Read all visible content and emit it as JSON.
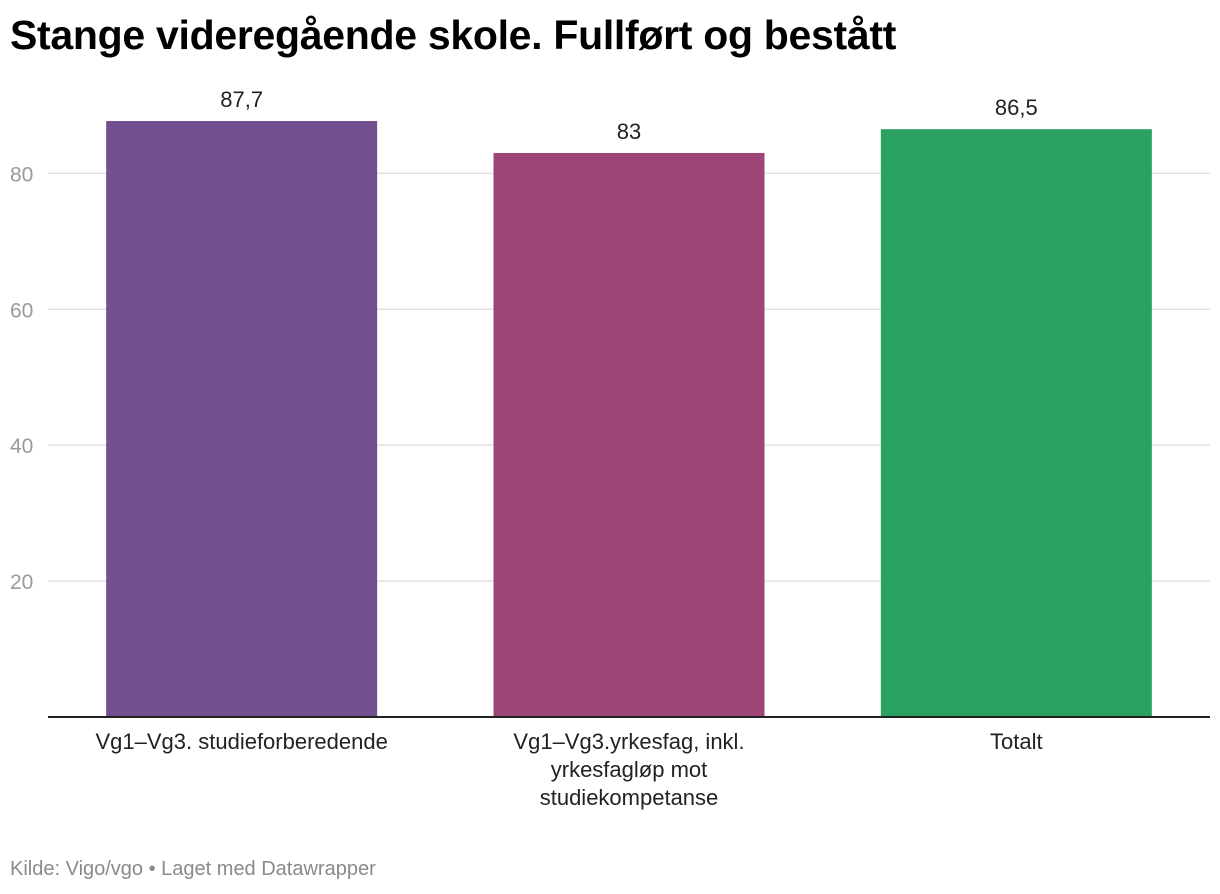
{
  "chart_data": {
    "type": "bar",
    "title": "Stange videregående skole. Fullført og bestått",
    "categories": [
      "Vg1–Vg3. studieforberedende",
      "Vg1–Vg3.yrkesfag, inkl. yrkesfagløp mot studiekompetanse",
      "Totalt"
    ],
    "values": [
      87.7,
      83,
      86.5
    ],
    "value_labels": [
      "87,7",
      "83",
      "86,5"
    ],
    "colors": [
      "#724f8f",
      "#9e4577",
      "#2aa061"
    ],
    "yticks": [
      20,
      40,
      60,
      80
    ],
    "ylim": [
      0,
      88
    ],
    "grid": true,
    "xlabel": "",
    "ylabel": ""
  },
  "footer": {
    "source": "Kilde: Vigo/vgo • Laget med Datawrapper"
  }
}
